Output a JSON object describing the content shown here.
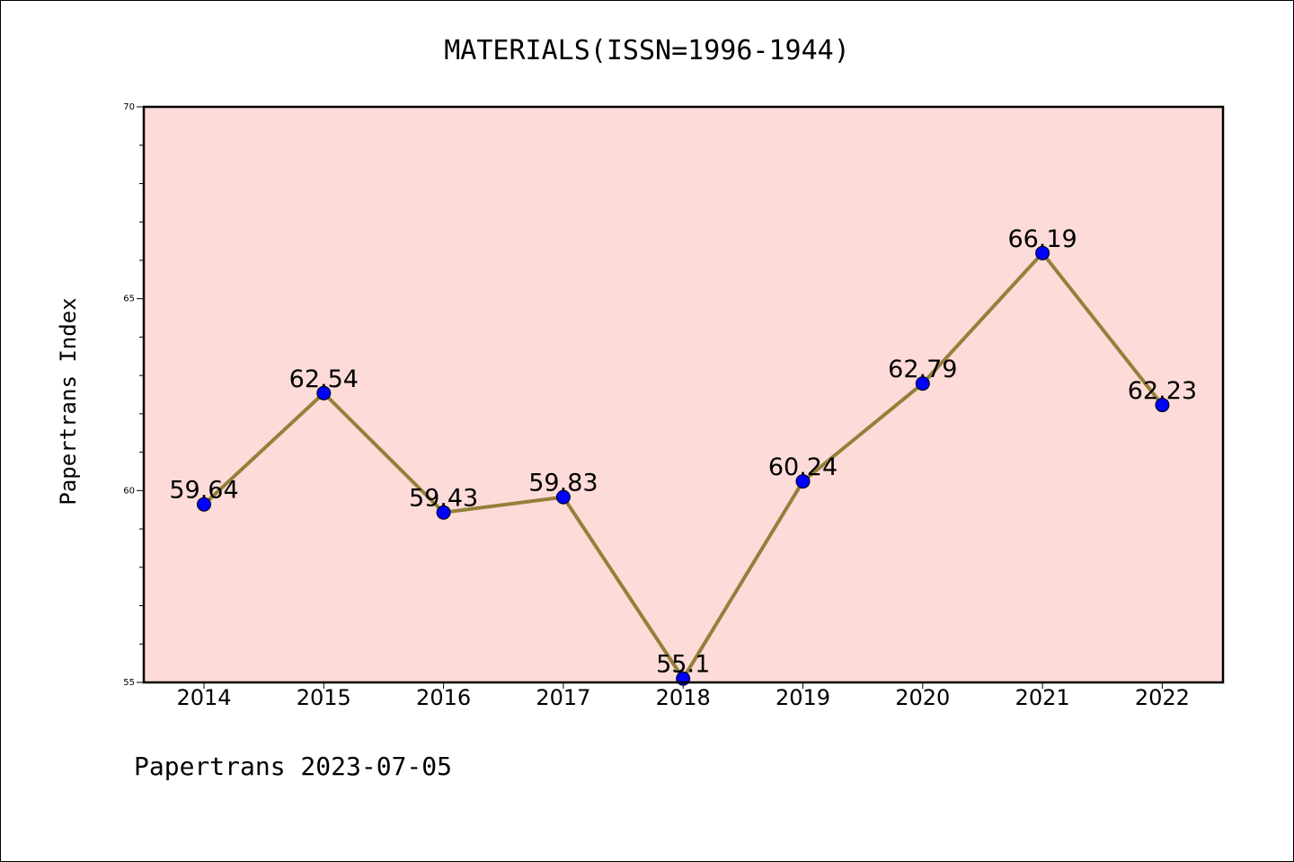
{
  "chart_data": {
    "type": "line",
    "title": "MATERIALS(ISSN=1996-1944)",
    "ylabel": "Papertrans Index",
    "xlabel": "",
    "categories": [
      "2014",
      "2015",
      "2016",
      "2017",
      "2018",
      "2019",
      "2020",
      "2021",
      "2022"
    ],
    "series": [
      {
        "values": [
          59.64,
          62.54,
          59.43,
          59.83,
          55.1,
          60.24,
          62.79,
          66.19,
          62.23
        ],
        "data_labels": [
          "59.64",
          "62.54",
          "59.43",
          "59.83",
          "55.1",
          "60.24",
          "62.79",
          "66.19",
          "62.23"
        ],
        "line_color": "#94803a",
        "marker_color": "#0000ff"
      }
    ],
    "ylim": [
      55,
      70
    ],
    "yticks": [
      "55",
      "60",
      "65",
      "70"
    ],
    "grid": false,
    "plot_background": "#fddbd8"
  },
  "footer": {
    "text": "Papertrans 2023-07-05"
  }
}
